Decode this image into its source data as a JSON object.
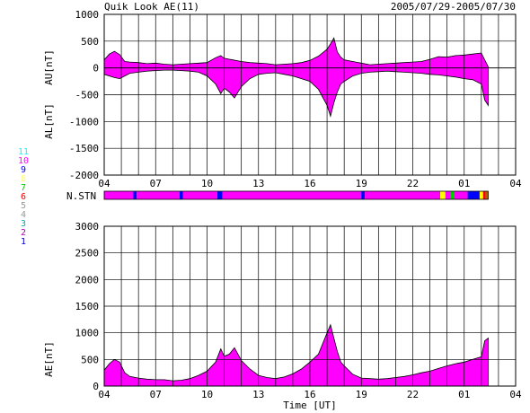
{
  "header": {
    "title": "Quik Look AE(11)",
    "date_range": "2005/07/29-2005/07/30"
  },
  "station_legend": {
    "numbers": [
      "11",
      "10",
      "9",
      "8",
      "7",
      "6",
      "5",
      "4",
      "3",
      "2",
      "1"
    ],
    "colors": [
      "#00ffff",
      "#ff00ff",
      "#0000ff",
      "#ffff66",
      "#00cc00",
      "#ff0000",
      "#999999",
      "#999999",
      "#00aaaa",
      "#aa00aa",
      "#0000cc"
    ]
  },
  "nstn_label": "N.STN",
  "chart_data": [
    {
      "type": "area",
      "name": "AU/AL",
      "ylabel_top": "AU[nT]",
      "ylabel_bottom": "AL[nT]",
      "ylim": [
        -2000,
        1000
      ],
      "yticks": [
        1000,
        500,
        0,
        -500,
        -1000,
        -1500,
        -2000
      ],
      "xlim_hours": [
        4,
        28
      ],
      "xticks": [
        "04",
        "07",
        "10",
        "13",
        "16",
        "19",
        "22",
        "01",
        "04"
      ],
      "grid": true,
      "au_hours": [
        4.0,
        4.3,
        4.6,
        4.9,
        5.2,
        5.5,
        6,
        6.5,
        7,
        7.5,
        8,
        8.5,
        9,
        9.5,
        10,
        10.5,
        10.8,
        11,
        11.5,
        12,
        12.5,
        13,
        13.5,
        14,
        14.5,
        15,
        15.5,
        16,
        16.5,
        17,
        17.2,
        17.4,
        17.6,
        17.8,
        18,
        18.5,
        19,
        19.5,
        20,
        20.5,
        21,
        21.5,
        22,
        22.5,
        23,
        23.5,
        24,
        24.5,
        25,
        25.5,
        26,
        26.4
      ],
      "au_values": [
        150,
        260,
        310,
        250,
        120,
        110,
        100,
        80,
        90,
        70,
        60,
        70,
        80,
        90,
        100,
        190,
        230,
        180,
        150,
        120,
        100,
        90,
        80,
        60,
        70,
        80,
        100,
        140,
        220,
        350,
        450,
        560,
        300,
        200,
        150,
        120,
        90,
        60,
        70,
        80,
        90,
        100,
        110,
        120,
        160,
        210,
        200,
        230,
        240,
        260,
        280,
        20
      ],
      "al_hours": [
        4.0,
        4.3,
        4.6,
        4.9,
        5.2,
        5.5,
        6,
        6.5,
        7,
        7.5,
        8,
        8.5,
        9,
        9.5,
        10,
        10.5,
        10.8,
        11,
        11.3,
        11.6,
        12,
        12.5,
        13,
        13.5,
        14,
        14.5,
        15,
        15.5,
        16,
        16.5,
        17,
        17.2,
        17.4,
        17.6,
        17.8,
        18,
        18.5,
        19,
        19.5,
        20,
        20.5,
        21,
        21.5,
        22,
        22.5,
        23,
        23.5,
        24,
        24.5,
        25,
        25.5,
        26,
        26.2,
        26.4
      ],
      "al_values": [
        -120,
        -150,
        -180,
        -200,
        -150,
        -100,
        -80,
        -60,
        -50,
        -40,
        -40,
        -50,
        -60,
        -80,
        -150,
        -300,
        -480,
        -380,
        -450,
        -560,
        -350,
        -200,
        -120,
        -100,
        -90,
        -120,
        -150,
        -200,
        -250,
        -400,
        -700,
        -900,
        -650,
        -450,
        -300,
        -250,
        -150,
        -100,
        -80,
        -70,
        -60,
        -70,
        -80,
        -90,
        -100,
        -120,
        -130,
        -150,
        -170,
        -200,
        -220,
        -300,
        -600,
        -700
      ]
    },
    {
      "type": "area",
      "name": "AE",
      "ylabel": "AE[nT]",
      "xlabel": "Time [UT]",
      "ylim": [
        0,
        3000
      ],
      "yticks": [
        3000,
        2500,
        2000,
        1500,
        1000,
        500,
        0
      ],
      "xlim_hours": [
        4,
        28
      ],
      "xticks": [
        "04",
        "07",
        "10",
        "13",
        "16",
        "19",
        "22",
        "01",
        "04"
      ],
      "grid": true,
      "hours": [
        4.0,
        4.3,
        4.6,
        4.9,
        5.2,
        5.5,
        6,
        6.5,
        7,
        7.5,
        8,
        8.5,
        9,
        9.5,
        10,
        10.5,
        10.8,
        11,
        11.3,
        11.6,
        12,
        12.5,
        13,
        13.5,
        14,
        14.5,
        15,
        15.5,
        16,
        16.5,
        17,
        17.2,
        17.4,
        17.6,
        17.8,
        18,
        18.5,
        19,
        19.5,
        20,
        20.5,
        21,
        21.5,
        22,
        22.5,
        23,
        23.5,
        24,
        24.5,
        25,
        25.5,
        26,
        26.2,
        26.4
      ],
      "values": [
        300,
        420,
        500,
        450,
        250,
        180,
        150,
        130,
        120,
        120,
        100,
        110,
        140,
        200,
        280,
        450,
        700,
        560,
        600,
        720,
        480,
        320,
        200,
        160,
        140,
        170,
        230,
        320,
        450,
        600,
        1000,
        1150,
        900,
        650,
        450,
        380,
        220,
        150,
        140,
        130,
        140,
        160,
        180,
        210,
        250,
        280,
        330,
        380,
        420,
        450,
        500,
        550,
        850,
        900
      ]
    },
    {
      "type": "table",
      "name": "N.STN",
      "segments": [
        {
          "start": 4.0,
          "end": 5.7,
          "color": "#ff00ff"
        },
        {
          "start": 5.7,
          "end": 5.9,
          "color": "#0000ff"
        },
        {
          "start": 5.9,
          "end": 8.4,
          "color": "#ff00ff"
        },
        {
          "start": 8.4,
          "end": 8.6,
          "color": "#0000ff"
        },
        {
          "start": 8.6,
          "end": 10.6,
          "color": "#ff00ff"
        },
        {
          "start": 10.6,
          "end": 10.9,
          "color": "#0000ff"
        },
        {
          "start": 10.9,
          "end": 19.0,
          "color": "#ff00ff"
        },
        {
          "start": 19.0,
          "end": 19.2,
          "color": "#0000ff"
        },
        {
          "start": 19.2,
          "end": 23.6,
          "color": "#ff00ff"
        },
        {
          "start": 23.6,
          "end": 23.9,
          "color": "#ffff00"
        },
        {
          "start": 23.9,
          "end": 24.2,
          "color": "#ff00ff"
        },
        {
          "start": 24.2,
          "end": 24.4,
          "color": "#00cc00"
        },
        {
          "start": 24.4,
          "end": 25.2,
          "color": "#ff00ff"
        },
        {
          "start": 25.2,
          "end": 25.9,
          "color": "#0000ff"
        },
        {
          "start": 25.9,
          "end": 26.1,
          "color": "#ffff00"
        },
        {
          "start": 26.1,
          "end": 26.25,
          "color": "#ff0000"
        },
        {
          "start": 26.25,
          "end": 26.4,
          "color": "#996600"
        }
      ]
    }
  ]
}
